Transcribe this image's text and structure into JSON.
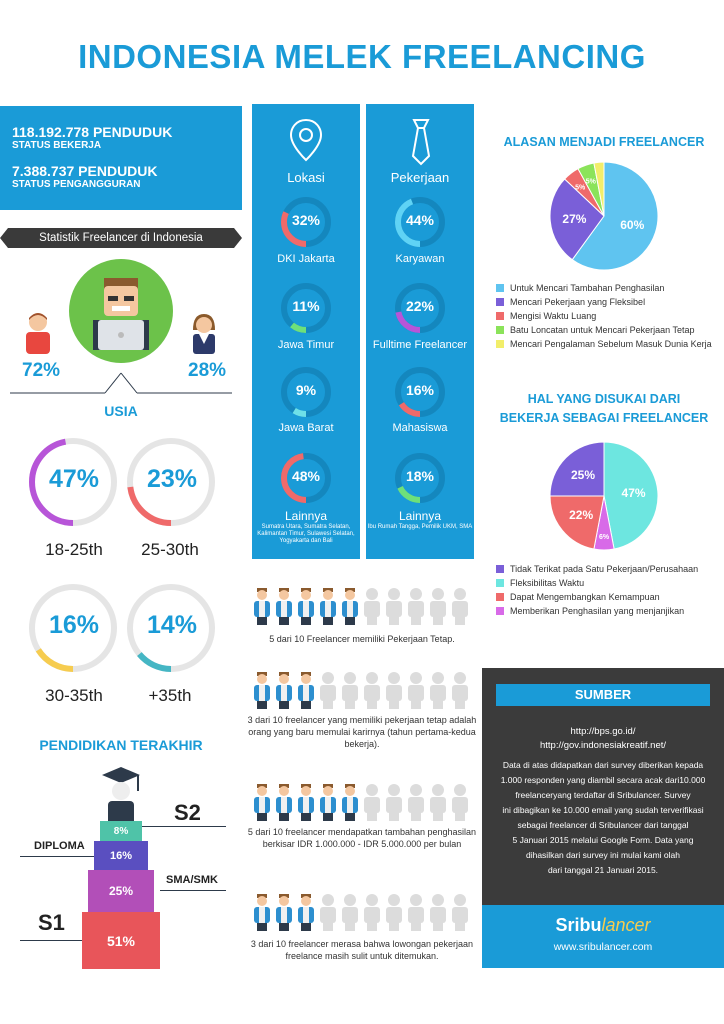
{
  "title": "INDONESIA MELEK FREELANCING",
  "stats": {
    "employed_value": "118.192.778 PENDUDUK",
    "employed_label": "STATUS BEKERJA",
    "unemployed_value": "7.388.737 PENDUDUK",
    "unemployed_label": "STATUS PENGANGGURAN"
  },
  "gender": {
    "ribbon": "Statistik Freelancer di Indonesia",
    "male_pct": "72%",
    "female_pct": "28%"
  },
  "age": {
    "heading": "USIA",
    "items": [
      {
        "pct": "47%",
        "label": "18-25th",
        "value": 47,
        "color": "#b755d8"
      },
      {
        "pct": "23%",
        "label": "25-30th",
        "value": 23,
        "color": "#ef6a6a"
      },
      {
        "pct": "16%",
        "label": "30-35th",
        "value": 16,
        "color": "#f6cc4f"
      },
      {
        "pct": "14%",
        "label": "+35th",
        "value": 14,
        "color": "#45b6c4"
      }
    ]
  },
  "education": {
    "heading": "PENDIDIKAN TERAKHIR",
    "s2_label": "S2",
    "diploma_label": "DIPLOMA",
    "sma_label": "SMA/SMK",
    "s1_label": "S1",
    "bars": [
      {
        "pct": "8%",
        "color": "#4fc3a8"
      },
      {
        "pct": "16%",
        "color": "#5a4fc0"
      },
      {
        "pct": "25%",
        "color": "#b24fb8"
      },
      {
        "pct": "51%",
        "color": "#e8555a"
      }
    ]
  },
  "location": {
    "heading": "Lokasi",
    "items": [
      {
        "pct": "32%",
        "label": "DKI Jakarta",
        "value": 32,
        "color": "#ef6a6a"
      },
      {
        "pct": "11%",
        "label": "Jawa Timur",
        "value": 11,
        "color": "#6ee07a"
      },
      {
        "pct": "9%",
        "label": "Jawa Barat",
        "value": 9,
        "color": "#6ee0e8"
      },
      {
        "pct": "48%",
        "label": "Lainnya",
        "value": 48,
        "color": "#ef6a6a"
      }
    ],
    "note": "Sumatra Utara, Sumatra Selatan, Kalimantan Timur, Sulawesi Selatan, Yogyakarta dan Bali"
  },
  "job": {
    "heading": "Pekerjaan",
    "items": [
      {
        "pct": "44%",
        "label": "Karyawan",
        "value": 44,
        "color": "#5fd3f5"
      },
      {
        "pct": "22%",
        "label": "Fulltime Freelancer",
        "value": 22,
        "color": "#b755d8"
      },
      {
        "pct": "16%",
        "label": "Mahasiswa",
        "value": 16,
        "color": "#ef6a6a"
      },
      {
        "pct": "18%",
        "label": "Lainnya",
        "value": 18,
        "color": "#6ee07a"
      }
    ],
    "note": "Ibu Rumah Tangga, Pemilik UKM, SMA"
  },
  "people_rows": [
    {
      "active": 5,
      "text": "5 dari 10 Freelancer memiliki Pekerjaan Tetap."
    },
    {
      "active": 3,
      "text": "3 dari 10 freelancer yang memiliki pekerjaan tetap adalah orang yang baru memulai karirnya (tahun pertama-kedua bekerja)."
    },
    {
      "active": 5,
      "text": "5 dari 10 freelancer mendapatkan tambahan penghasilan berkisar IDR 1.000.000 - IDR 5.000.000 per bulan"
    },
    {
      "active": 3,
      "text": "3 dari 10 freelancer merasa bahwa lowongan pekerjaan freelance masih sulit untuk ditemukan."
    }
  ],
  "reasons": {
    "heading": "ALASAN MENJADI FREELANCER",
    "chart_data": {
      "type": "pie",
      "values": [
        60,
        27,
        5,
        5,
        3
      ],
      "labels": [
        "60%",
        "27%",
        "5%",
        "5%",
        ""
      ],
      "colors": [
        "#5fc4f0",
        "#7a5fd8",
        "#ef6a6a",
        "#8be35a",
        "#f2ee6a"
      ],
      "legend": [
        "Untuk Mencari Tambahan Penghasilan",
        "Mencari Pekerjaan yang Fleksibel",
        "Mengisi Waktu Luang",
        "Batu Loncatan untuk Mencari Pekerjaan Tetap",
        "Mencari Pengalaman Sebelum Masuk Dunia Kerja"
      ]
    }
  },
  "likes": {
    "heading_line1": "HAL YANG DISUKAI DARI",
    "heading_line2": "BEKERJA SEBAGAI FREELANCER",
    "chart_data": {
      "type": "pie",
      "values": [
        47,
        6,
        22,
        25
      ],
      "labels": [
        "47%",
        "6%",
        "22%",
        "25%"
      ],
      "colors": [
        "#6de6e0",
        "#d86ae8",
        "#ef6a6a",
        "#7a5fd8"
      ],
      "legend": [
        {
          "text": "Tidak Terikat pada Satu Pekerjaan/Perusahaan",
          "color": "#7a5fd8"
        },
        {
          "text": "Fleksibilitas Waktu",
          "color": "#6de6e0"
        },
        {
          "text": "Dapat Mengembangkan Kemampuan",
          "color": "#ef6a6a"
        },
        {
          "text": "Memberikan Penghasilan yang menjanjikan",
          "color": "#d86ae8"
        }
      ]
    }
  },
  "sumber": {
    "heading": "SUMBER",
    "url1": "http://bps.go.id/",
    "url2": "http://gov.indonesiakreatif.net/",
    "lines": [
      "Data di atas didapatkan dari survey diberikan kepada",
      "1.000 responden yang diambil secara acak dari10.000",
      "freelanceryang terdaftar di Sribulancer. Survey",
      "ini dibagikan ke 10.000 email yang sudah terverifikasi",
      "sebagai freelancer di Sribulancer dari tanggal",
      "5 Januari 2015 melalui Google Form. Data yang",
      "dihasilkan dari survey ini mulai kami olah",
      "dari tanggal 21 Januari 2015."
    ],
    "brand_bold": "Sribu",
    "brand_light": "lancer",
    "site": "www.sribulancer.com"
  }
}
